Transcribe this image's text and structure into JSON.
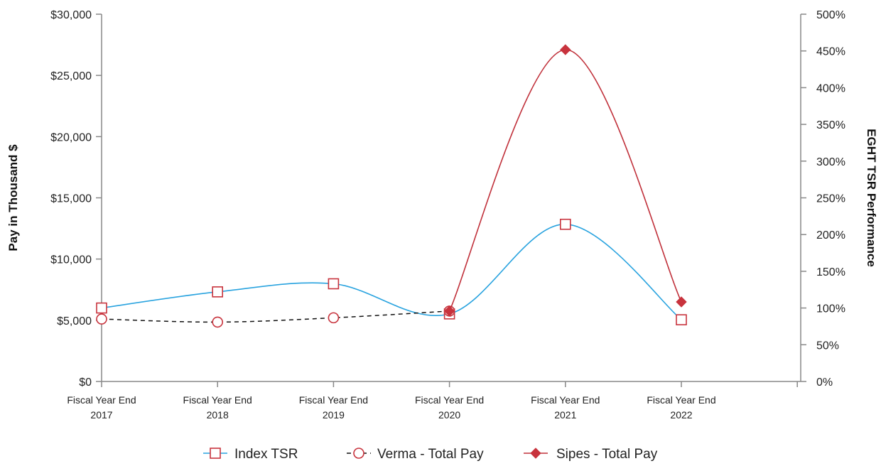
{
  "chart_data": {
    "type": "line",
    "categories": [
      "Fiscal Year End\n2017",
      "Fiscal Year End\n2018",
      "Fiscal Year End\n2019",
      "Fiscal Year End\n2020",
      "Fiscal Year End\n2021",
      "Fiscal Year End\n2022"
    ],
    "y_left": {
      "label": "Pay in Thousand $",
      "ylim": [
        0,
        30000
      ],
      "ticks": [
        "$0",
        "$5,000",
        "$10,000",
        "$15,000",
        "$20,000",
        "$25,000",
        "$30,000"
      ]
    },
    "y_right": {
      "label": "EGHT TSR Performance",
      "ylim": [
        0,
        500
      ],
      "ticks": [
        "0%",
        "50%",
        "100%",
        "150%",
        "200%",
        "250%",
        "300%",
        "350%",
        "400%",
        "450%",
        "500%"
      ]
    },
    "series": [
      {
        "name": "Index TSR",
        "axis": "right",
        "color": "#29a3df",
        "marker": "open-square",
        "marker_color": "#c8333d",
        "values": [
          100,
          122,
          133,
          92,
          214,
          84
        ]
      },
      {
        "name": "Verma - Total Pay",
        "axis": "left",
        "color": "#111111",
        "dashed": true,
        "marker": "open-circle",
        "marker_color": "#c8333d",
        "values": [
          5100,
          4850,
          5200,
          5750,
          null,
          null
        ]
      },
      {
        "name": "Sipes - Total Pay",
        "axis": "left",
        "color": "#c0303a",
        "marker": "filled-diamond",
        "marker_color": "#c8333d",
        "values": [
          null,
          null,
          null,
          5750,
          27100,
          6500
        ]
      }
    ],
    "legend": {
      "position": "bottom"
    },
    "grid": false
  }
}
